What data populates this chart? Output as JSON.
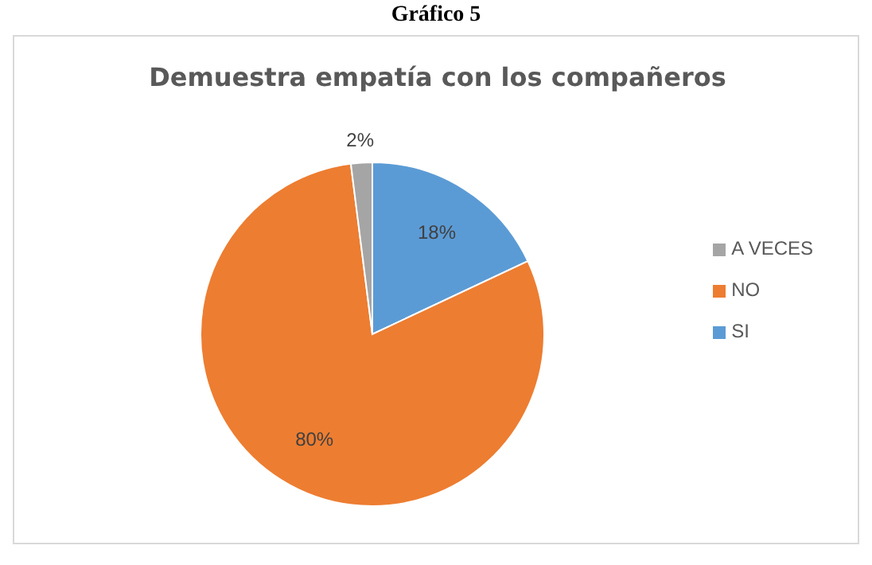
{
  "chart_data": {
    "type": "pie",
    "title": "Demuestra empatía con los compañeros",
    "annotations": [
      "Gráfico 5"
    ],
    "categories": [
      "SI",
      "NO",
      "A VECES"
    ],
    "values": [
      18,
      80,
      2
    ],
    "colors": [
      "#5b9bd5",
      "#ed7d31",
      "#a5a5a5"
    ],
    "value_labels": [
      "18%",
      "80%",
      "2%"
    ],
    "legend": "right"
  }
}
